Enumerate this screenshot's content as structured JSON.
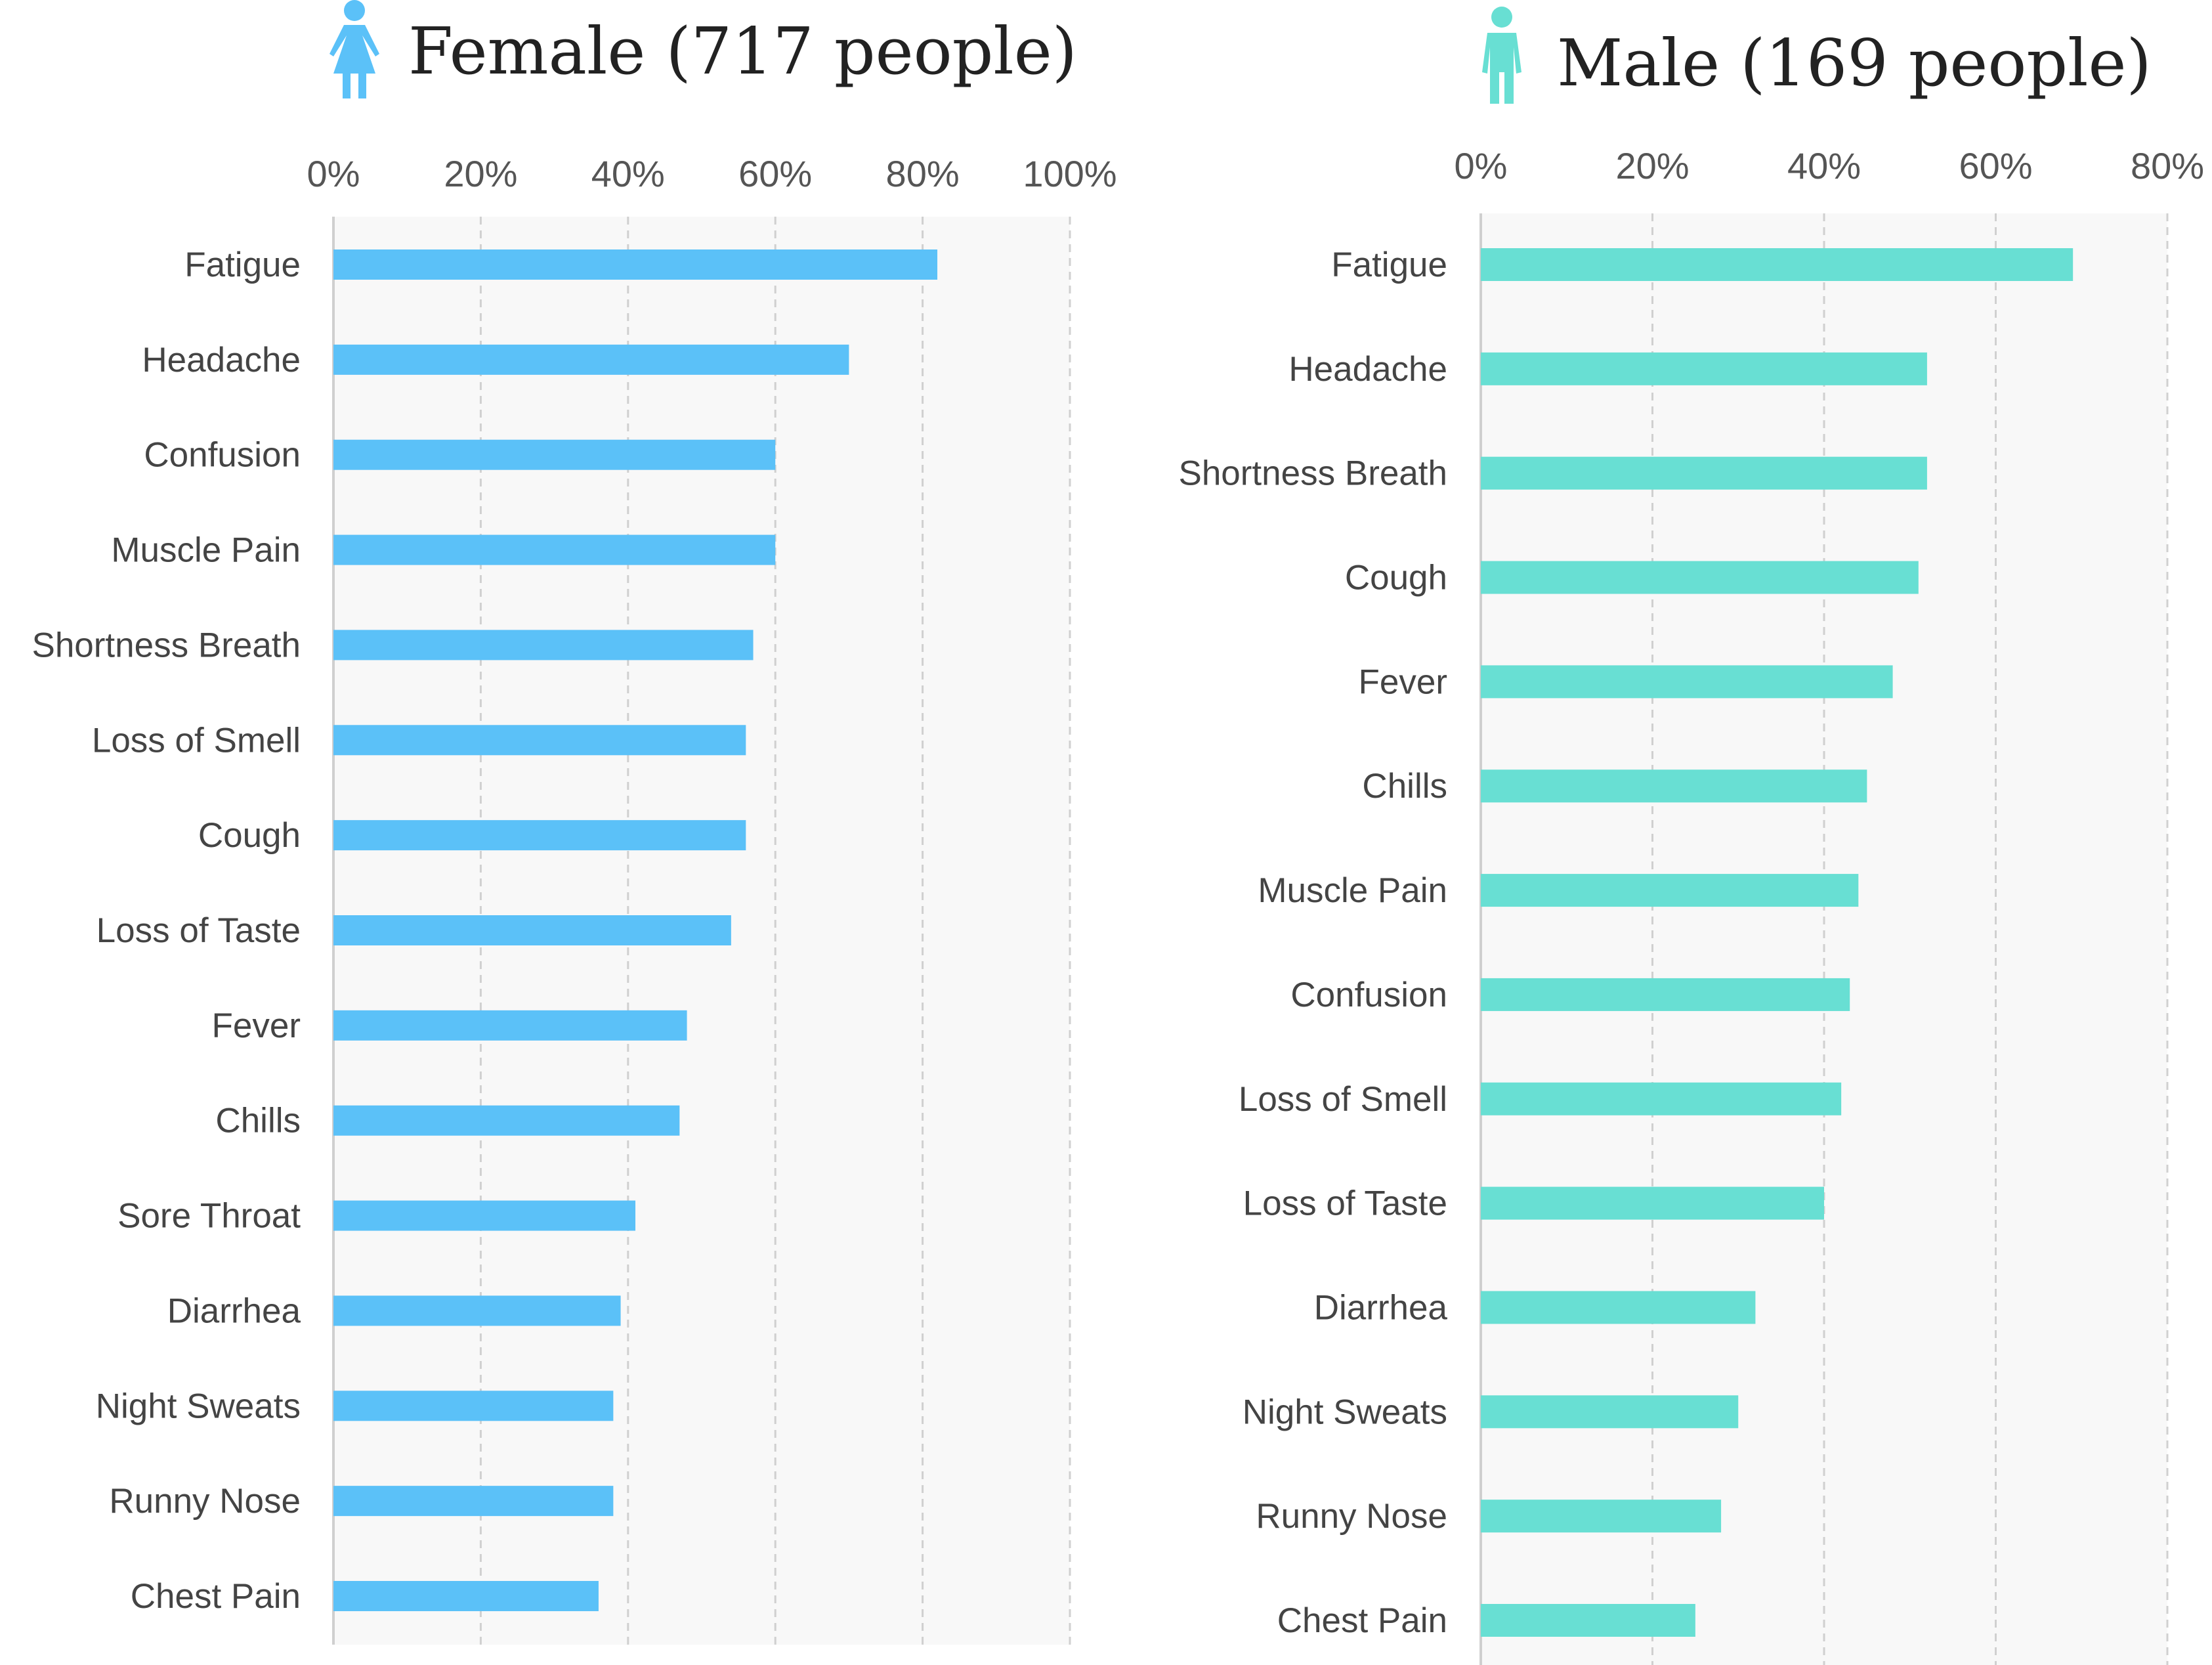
{
  "chart_data": [
    {
      "type": "bar",
      "orientation": "horizontal",
      "title": "Female (717  people)",
      "icon": "female-person-icon",
      "color": "#5bc1f8",
      "xlim": [
        0,
        100
      ],
      "x_ticks": [
        "0%",
        "20%",
        "40%",
        "60%",
        "80%",
        "100%"
      ],
      "x_tick_values": [
        0,
        20,
        40,
        60,
        80,
        100
      ],
      "grid": true,
      "categories": [
        "Fatigue",
        "Headache",
        "Confusion",
        "Muscle Pain",
        "Shortness Breath",
        "Loss of Smell",
        "Cough",
        "Loss of Taste",
        "Fever",
        "Chills",
        "Sore Throat",
        "Diarrhea",
        "Night Sweats",
        "Runny Nose",
        "Chest Pain"
      ],
      "values": [
        82,
        70,
        60,
        60,
        57,
        56,
        56,
        54,
        48,
        47,
        41,
        39,
        38,
        38,
        36
      ]
    },
    {
      "type": "bar",
      "orientation": "horizontal",
      "title": "Male (169 people)",
      "icon": "male-person-icon",
      "color": "#68dfd3",
      "xlim": [
        0,
        80
      ],
      "x_ticks": [
        "0%",
        "20%",
        "40%",
        "60%",
        "80%"
      ],
      "x_tick_values": [
        0,
        20,
        40,
        60,
        80
      ],
      "grid": true,
      "categories": [
        "Fatigue",
        "Headache",
        "Shortness Breath",
        "Cough",
        "Fever",
        "Chills",
        "Muscle Pain",
        "Confusion",
        "Loss of Smell",
        "Loss of Taste",
        "Diarrhea",
        "Night Sweats",
        "Runny Nose",
        "Chest Pain"
      ],
      "values": [
        69,
        52,
        52,
        51,
        48,
        45,
        44,
        43,
        42,
        40,
        32,
        30,
        28,
        25
      ]
    }
  ]
}
